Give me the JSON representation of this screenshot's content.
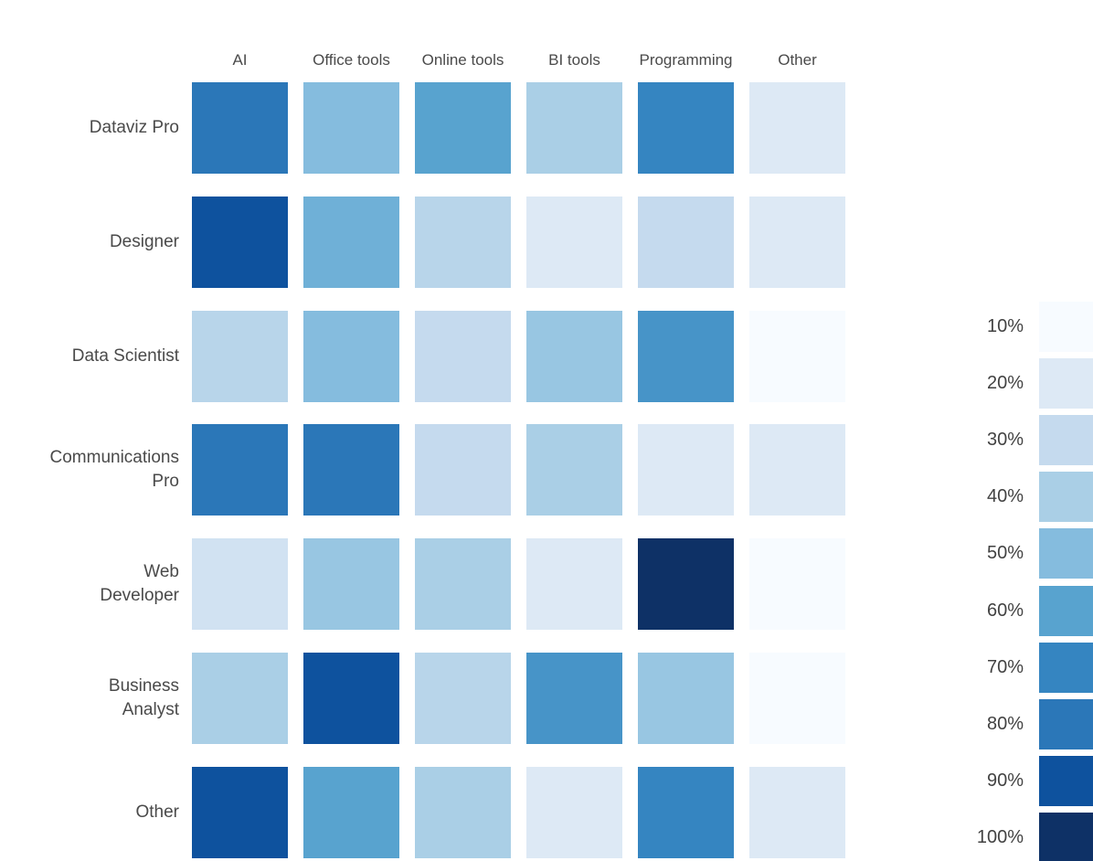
{
  "chart_data": {
    "type": "heatmap",
    "title": "",
    "columns": [
      "AI",
      "Office tools",
      "Online tools",
      "BI tools",
      "Programming",
      "Other"
    ],
    "rows": [
      "Dataviz Pro",
      "Designer",
      "Data Scientist",
      "Communications\nPro",
      "Web\nDeveloper",
      "Business\nAnalyst",
      "Other"
    ],
    "values_percent": [
      [
        80,
        50,
        60,
        40,
        70,
        20
      ],
      [
        90,
        55,
        35,
        20,
        30,
        20
      ],
      [
        35,
        50,
        30,
        45,
        65,
        10
      ],
      [
        80,
        80,
        30,
        40,
        20,
        20
      ],
      [
        25,
        45,
        40,
        20,
        100,
        10
      ],
      [
        40,
        90,
        35,
        65,
        45,
        10
      ],
      [
        90,
        60,
        40,
        20,
        70,
        20
      ]
    ],
    "value_unit": "%",
    "grid": "off",
    "legend": {
      "position": "right",
      "labels": [
        "10%",
        "20%",
        "30%",
        "40%",
        "50%",
        "60%",
        "70%",
        "80%",
        "90%",
        "100%"
      ],
      "values": [
        10,
        20,
        30,
        40,
        50,
        60,
        70,
        80,
        90,
        100
      ],
      "colors": [
        "#f7fbff",
        "#dde9f5",
        "#c5daee",
        "#aacfe6",
        "#85bcde",
        "#58a3cf",
        "#3585c1",
        "#2b77b8",
        "#0e529e",
        "#0e3166"
      ]
    },
    "colors": {
      "background": "#ffffff",
      "text": "#4a4a4a"
    }
  }
}
